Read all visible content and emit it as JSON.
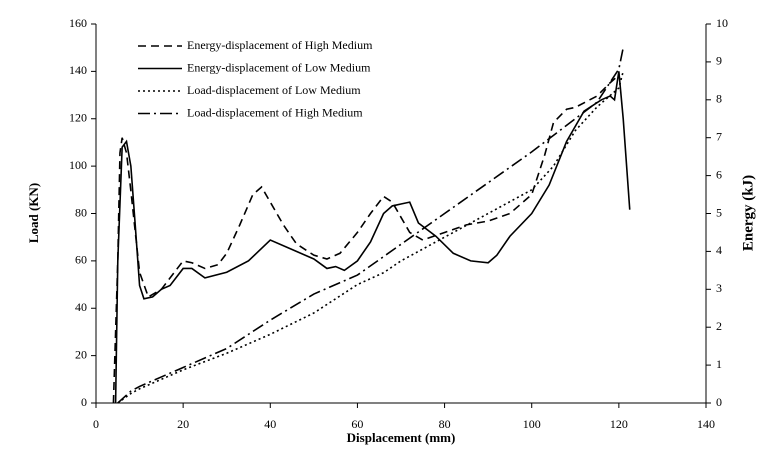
{
  "chart_data": {
    "type": "line",
    "x_label": "Displacement (mm)",
    "y_label": "Load (KN)",
    "y2_label": "Energy (kJ)",
    "xlim": [
      0,
      140
    ],
    "xticks": [
      0,
      20,
      40,
      60,
      80,
      100,
      120,
      140
    ],
    "ylim": [
      0,
      160
    ],
    "yticks": [
      0,
      20,
      40,
      60,
      80,
      100,
      120,
      140,
      160
    ],
    "y2lim": [
      0,
      10
    ],
    "y2ticks": [
      0,
      1,
      2,
      3,
      4,
      5,
      6,
      7,
      8,
      9,
      10
    ],
    "legend": "upper-left",
    "series": [
      {
        "name": "Energy-displacement of High Medium",
        "color": "#000000",
        "dash": "8,5",
        "axis": "y2",
        "x": [
          4,
          5,
          5.5,
          6,
          7,
          8,
          10,
          12,
          15,
          18,
          20,
          22,
          25,
          28,
          30,
          33,
          36,
          38,
          40,
          43,
          46,
          50,
          53,
          56,
          60,
          63,
          66,
          68,
          70,
          72,
          75,
          80,
          85,
          90,
          95,
          100,
          103,
          105,
          108,
          110,
          115,
          118,
          120
        ],
        "values": [
          0,
          3.75,
          6.6,
          7,
          6.6,
          5.6,
          3.45,
          2.8,
          3,
          3.45,
          3.75,
          3.7,
          3.55,
          3.65,
          3.95,
          4.7,
          5.5,
          5.7,
          5.3,
          4.7,
          4.2,
          3.9,
          3.8,
          3.95,
          4.5,
          5,
          5.45,
          5.3,
          4.9,
          4.5,
          4.3,
          4.5,
          4.7,
          4.8,
          5,
          5.5,
          6.55,
          7.4,
          7.75,
          7.8,
          8.1,
          8.45,
          8.65
        ]
      },
      {
        "name": "Energy-displacement of Low Medium",
        "color": "#000000",
        "dash": "",
        "axis": "y2",
        "x": [
          4.5,
          5,
          6,
          7,
          8,
          9,
          10,
          11,
          13,
          15,
          17,
          20,
          22,
          25,
          30,
          35,
          40,
          45,
          50,
          53,
          55,
          57,
          60,
          63,
          66,
          68,
          70,
          72,
          74,
          78,
          82,
          86,
          90,
          92,
          95,
          100,
          104,
          108,
          112,
          116,
          118,
          119,
          120,
          121,
          122.5
        ],
        "values": [
          0,
          3.75,
          6.75,
          6.9,
          6.25,
          4.7,
          3.1,
          2.75,
          2.8,
          3,
          3.1,
          3.55,
          3.55,
          3.3,
          3.45,
          3.75,
          4.3,
          4.05,
          3.8,
          3.55,
          3.6,
          3.5,
          3.75,
          4.25,
          5,
          5.2,
          5.25,
          5.3,
          4.75,
          4.4,
          3.95,
          3.75,
          3.7,
          3.9,
          4.4,
          5,
          5.75,
          6.9,
          7.7,
          8,
          8.1,
          8,
          8.75,
          7.5,
          5.1
        ]
      },
      {
        "name": "Load-displacement of Low Medium",
        "color": "#000000",
        "dash": "2,3",
        "x": [
          5,
          8,
          10,
          15,
          20,
          30,
          40,
          50,
          60,
          66,
          70,
          80,
          90,
          100,
          105,
          110,
          115,
          120,
          121
        ],
        "values": [
          0,
          4,
          6,
          10,
          14,
          21,
          29,
          38,
          50,
          55,
          60,
          70,
          80,
          90,
          100,
          115,
          125,
          133,
          140
        ]
      },
      {
        "name": "Load-displacement of High Medium",
        "color": "#000000",
        "dash": "12,4,2,4",
        "x": [
          5,
          8,
          10,
          15,
          20,
          30,
          40,
          50,
          60,
          70,
          80,
          90,
          100,
          110,
          115,
          120,
          121
        ],
        "values": [
          0,
          5,
          7,
          11,
          15,
          23,
          35,
          46,
          54,
          67,
          80,
          93,
          106,
          120,
          127,
          141,
          150
        ]
      }
    ]
  }
}
